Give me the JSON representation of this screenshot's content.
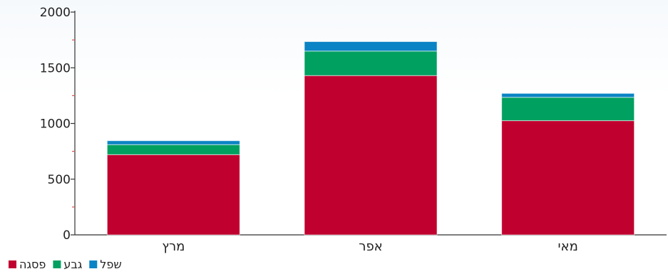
{
  "chart_data": {
    "type": "bar",
    "stacked": true,
    "categories": [
      "מרץ",
      "אפר",
      "מאי"
    ],
    "series": [
      {
        "name": "פסגה",
        "color": "#c0002f",
        "values": [
          720,
          1430,
          1025
        ]
      },
      {
        "name": "גבע",
        "color": "#00a060",
        "values": [
          90,
          220,
          210
        ]
      },
      {
        "name": "שפל",
        "color": "#0a84c4",
        "values": [
          35,
          85,
          35
        ]
      }
    ],
    "title": "",
    "xlabel": "",
    "ylabel": "",
    "ylim": [
      0,
      2000
    ],
    "yticks": [
      0,
      500,
      1000,
      1500,
      2000
    ],
    "grid": false,
    "legend_position": "bottom-left"
  }
}
